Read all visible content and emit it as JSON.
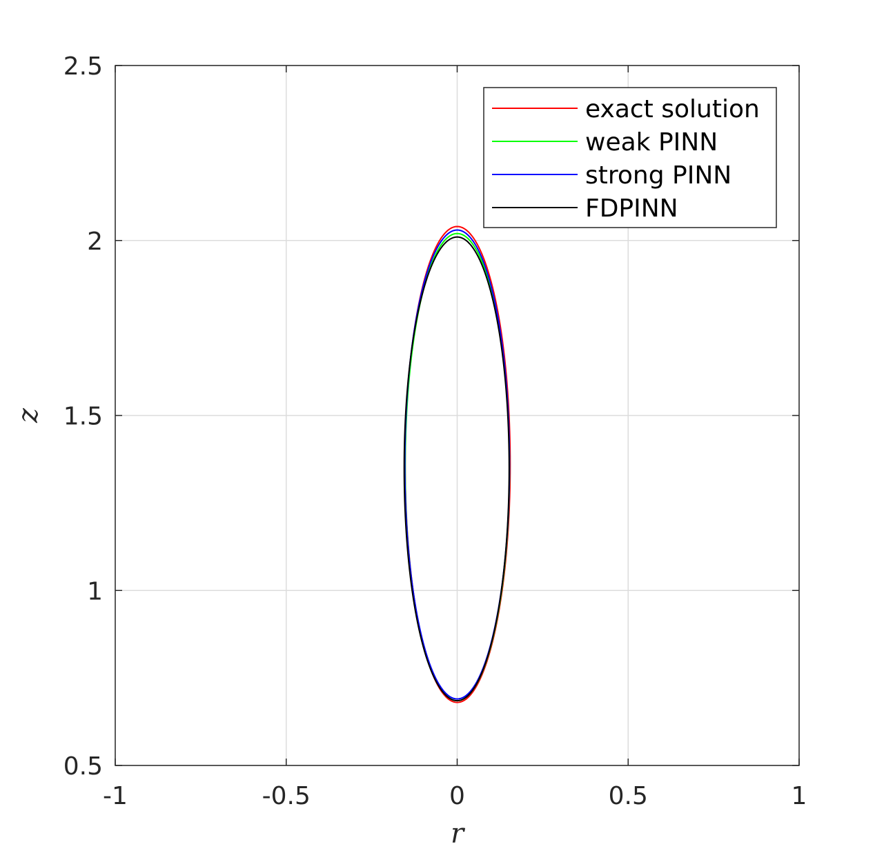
{
  "chart_data": {
    "type": "line",
    "title": "",
    "xlabel": "r",
    "ylabel": "z",
    "xlim": [
      -1,
      1
    ],
    "ylim": [
      0.5,
      2.5
    ],
    "xticks": [
      -1,
      -0.5,
      0,
      0.5,
      1
    ],
    "xtick_labels": [
      "-1",
      "-0.5",
      "0",
      "0.5",
      "1"
    ],
    "yticks": [
      0.5,
      1,
      1.5,
      2,
      2.5
    ],
    "ytick_labels": [
      "0.5",
      "1",
      "1.5",
      "2",
      "2.5"
    ],
    "grid": true,
    "legend_position": "top-right",
    "series": [
      {
        "name": "exact solution",
        "color": "#ff0000",
        "shape": "closed-curve",
        "r_center": 0.0,
        "z_center": 1.36,
        "r_min": -0.152,
        "r_max": 0.155,
        "z_min": 0.68,
        "z_max": 2.04
      },
      {
        "name": "weak PINN",
        "color": "#00ff00",
        "shape": "closed-curve",
        "r_center": 0.0,
        "z_center": 1.35,
        "r_min": -0.152,
        "r_max": 0.153,
        "z_min": 0.685,
        "z_max": 2.02
      },
      {
        "name": "strong PINN",
        "color": "#0000ff",
        "shape": "closed-curve",
        "r_center": 0.0,
        "z_center": 1.36,
        "r_min": -0.153,
        "r_max": 0.153,
        "z_min": 0.69,
        "z_max": 2.03
      },
      {
        "name": "FDPINN",
        "color": "#000000",
        "shape": "closed-curve",
        "r_center": 0.0,
        "z_center": 1.35,
        "r_min": -0.155,
        "r_max": 0.152,
        "z_min": 0.685,
        "z_max": 2.01
      }
    ]
  }
}
